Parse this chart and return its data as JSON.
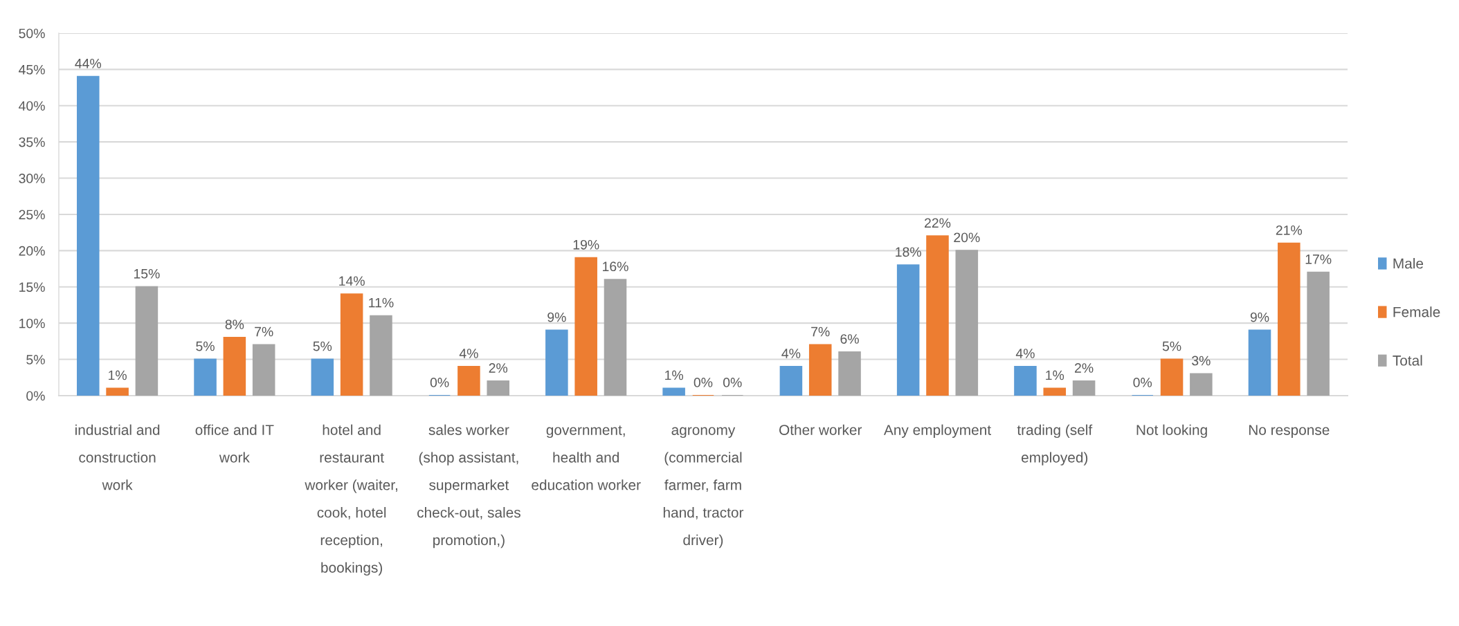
{
  "chart_data": {
    "type": "bar",
    "categories": [
      "industrial and construction work",
      "office and IT work",
      "hotel and restaurant worker (waiter, cook, hotel reception, bookings)",
      "sales worker (shop assistant, supermarket check-out, sales promotion,)",
      "government, health and education worker",
      "agronomy (commercial farmer, farm hand, tractor driver)",
      "Other worker",
      "Any employment",
      "trading (self employed)",
      "Not looking",
      "No response"
    ],
    "series": [
      {
        "name": "Male",
        "color": "#5b9bd5",
        "values": [
          44,
          5,
          5,
          0,
          9,
          1,
          4,
          18,
          4,
          0,
          9
        ],
        "value_labels": [
          "44%",
          "5%",
          "5%",
          "0%",
          "9%",
          "1%",
          "4%",
          "18%",
          "4%",
          "0%",
          "9%"
        ]
      },
      {
        "name": "Female",
        "color": "#ed7d31",
        "values": [
          1,
          8,
          14,
          4,
          19,
          0,
          7,
          22,
          1,
          5,
          21
        ],
        "value_labels": [
          "1%",
          "8%",
          "14%",
          "4%",
          "19%",
          "0%",
          "7%",
          "22%",
          "1%",
          "5%",
          "21%"
        ]
      },
      {
        "name": "Total",
        "color": "#a5a5a5",
        "values": [
          15,
          7,
          11,
          2,
          16,
          0,
          6,
          20,
          2,
          3,
          17
        ],
        "value_labels": [
          "15%",
          "7%",
          "11%",
          "2%",
          "16%",
          "0%",
          "6%",
          "20%",
          "2%",
          "3%",
          "17%"
        ]
      }
    ],
    "ylim": [
      0,
      50
    ],
    "yticks": [
      {
        "value": 0,
        "label": "0%"
      },
      {
        "value": 5,
        "label": "5%"
      },
      {
        "value": 10,
        "label": "10%"
      },
      {
        "value": 15,
        "label": "15%"
      },
      {
        "value": 20,
        "label": "20%"
      },
      {
        "value": 25,
        "label": "25%"
      },
      {
        "value": 30,
        "label": "30%"
      },
      {
        "value": 35,
        "label": "35%"
      },
      {
        "value": 40,
        "label": "40%"
      },
      {
        "value": 45,
        "label": "45%"
      },
      {
        "value": 50,
        "label": "50%"
      }
    ],
    "grid": "y",
    "legend": "right"
  }
}
